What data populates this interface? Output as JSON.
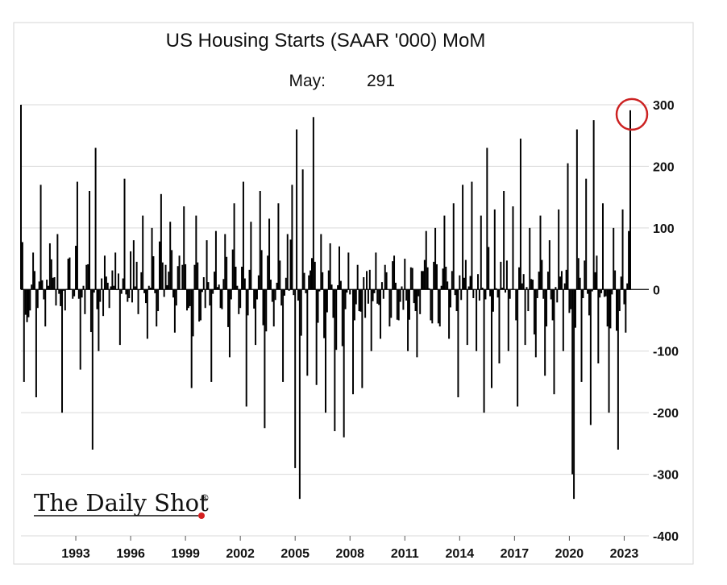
{
  "chart_data": {
    "type": "bar",
    "title": "US Housing Starts (SAAR '000) MoM",
    "subtitle_label": "May:",
    "subtitle_value": "291",
    "xlabel": "",
    "ylabel": "",
    "ylim": [
      -400,
      300
    ],
    "y_ticks": [
      300,
      200,
      100,
      0,
      -100,
      -200,
      -300,
      -400
    ],
    "x_tick_labels": [
      "1993",
      "1996",
      "1999",
      "2002",
      "2005",
      "2008",
      "2011",
      "2014",
      "2017",
      "2020",
      "2023"
    ],
    "x_range": [
      "1990-01",
      "2023-05"
    ],
    "grid": "horizontal",
    "highlight": {
      "date": "2023-05",
      "value": 291,
      "color": "#cc2222"
    },
    "series": [
      {
        "color": "#000000",
        "anchors": [
          [
            "1990-01",
            300
          ],
          [
            "1990-03",
            -150
          ],
          [
            "1990-06",
            -45
          ],
          [
            "1990-09",
            60
          ],
          [
            "1990-11",
            -175
          ],
          [
            "1991-02",
            170
          ],
          [
            "1991-05",
            -60
          ],
          [
            "1991-08",
            75
          ],
          [
            "1991-11",
            20
          ],
          [
            "1992-01",
            90
          ],
          [
            "1992-04",
            -200
          ],
          [
            "1992-08",
            50
          ],
          [
            "1992-11",
            -15
          ],
          [
            "1993-02",
            175
          ],
          [
            "1993-04",
            -130
          ],
          [
            "1993-08",
            40
          ],
          [
            "1993-10",
            160
          ],
          [
            "1993-12",
            -260
          ],
          [
            "1994-02",
            230
          ],
          [
            "1994-04",
            -100
          ],
          [
            "1994-08",
            55
          ],
          [
            "1994-11",
            -30
          ],
          [
            "1995-03",
            60
          ],
          [
            "1995-06",
            -90
          ],
          [
            "1995-09",
            180
          ],
          [
            "1995-11",
            -20
          ],
          [
            "1996-03",
            80
          ],
          [
            "1996-06",
            -40
          ],
          [
            "1996-09",
            120
          ],
          [
            "1996-12",
            -80
          ],
          [
            "1997-03",
            100
          ],
          [
            "1997-06",
            -60
          ],
          [
            "1997-09",
            155
          ],
          [
            "1997-12",
            40
          ],
          [
            "1998-03",
            110
          ],
          [
            "1998-06",
            -70
          ],
          [
            "1998-09",
            55
          ],
          [
            "1998-12",
            135
          ],
          [
            "1999-03",
            -30
          ],
          [
            "1999-05",
            -160
          ],
          [
            "1999-08",
            120
          ],
          [
            "1999-11",
            -50
          ],
          [
            "2000-03",
            80
          ],
          [
            "2000-06",
            -150
          ],
          [
            "2000-09",
            95
          ],
          [
            "2000-12",
            -30
          ],
          [
            "2001-03",
            90
          ],
          [
            "2001-06",
            -110
          ],
          [
            "2001-09",
            140
          ],
          [
            "2001-12",
            -40
          ],
          [
            "2002-03",
            175
          ],
          [
            "2002-05",
            -190
          ],
          [
            "2002-08",
            110
          ],
          [
            "2002-11",
            -90
          ],
          [
            "2003-02",
            160
          ],
          [
            "2003-05",
            -225
          ],
          [
            "2003-08",
            115
          ],
          [
            "2003-11",
            -60
          ],
          [
            "2004-02",
            140
          ],
          [
            "2004-05",
            -150
          ],
          [
            "2004-08",
            90
          ],
          [
            "2004-11",
            170
          ],
          [
            "2005-01",
            -290
          ],
          [
            "2005-02",
            260
          ],
          [
            "2005-04",
            -340
          ],
          [
            "2005-06",
            195
          ],
          [
            "2005-09",
            -140
          ],
          [
            "2006-01",
            280
          ],
          [
            "2006-03",
            -155
          ],
          [
            "2006-06",
            90
          ],
          [
            "2006-09",
            -200
          ],
          [
            "2006-12",
            75
          ],
          [
            "2007-03",
            -230
          ],
          [
            "2007-06",
            70
          ],
          [
            "2007-09",
            -240
          ],
          [
            "2007-12",
            60
          ],
          [
            "2008-03",
            -170
          ],
          [
            "2008-06",
            40
          ],
          [
            "2008-09",
            -160
          ],
          [
            "2008-12",
            30
          ],
          [
            "2009-03",
            -100
          ],
          [
            "2009-06",
            60
          ],
          [
            "2009-09",
            -80
          ],
          [
            "2009-12",
            40
          ],
          [
            "2010-03",
            -60
          ],
          [
            "2010-06",
            55
          ],
          [
            "2010-09",
            -50
          ],
          [
            "2011-01",
            50
          ],
          [
            "2011-03",
            -100
          ],
          [
            "2011-06",
            35
          ],
          [
            "2011-09",
            -110
          ],
          [
            "2011-12",
            30
          ],
          [
            "2012-03",
            95
          ],
          [
            "2012-06",
            -50
          ],
          [
            "2012-09",
            100
          ],
          [
            "2012-12",
            -60
          ],
          [
            "2013-03",
            120
          ],
          [
            "2013-06",
            -80
          ],
          [
            "2013-09",
            140
          ],
          [
            "2013-12",
            -175
          ],
          [
            "2014-03",
            170
          ],
          [
            "2014-06",
            -90
          ],
          [
            "2014-09",
            175
          ],
          [
            "2014-12",
            -100
          ],
          [
            "2015-03",
            120
          ],
          [
            "2015-05",
            -200
          ],
          [
            "2015-07",
            230
          ],
          [
            "2015-10",
            -160
          ],
          [
            "2015-12",
            130
          ],
          [
            "2016-03",
            -120
          ],
          [
            "2016-06",
            160
          ],
          [
            "2016-09",
            -100
          ],
          [
            "2016-12",
            135
          ],
          [
            "2017-03",
            -190
          ],
          [
            "2017-05",
            245
          ],
          [
            "2017-08",
            -90
          ],
          [
            "2017-11",
            100
          ],
          [
            "2018-03",
            -110
          ],
          [
            "2018-06",
            120
          ],
          [
            "2018-09",
            -140
          ],
          [
            "2018-12",
            80
          ],
          [
            "2019-03",
            -170
          ],
          [
            "2019-06",
            130
          ],
          [
            "2019-09",
            -100
          ],
          [
            "2019-12",
            205
          ],
          [
            "2020-03",
            -300
          ],
          [
            "2020-04",
            -340
          ],
          [
            "2020-06",
            260
          ],
          [
            "2020-09",
            -150
          ],
          [
            "2020-12",
            180
          ],
          [
            "2021-03",
            -220
          ],
          [
            "2021-05",
            275
          ],
          [
            "2021-08",
            -120
          ],
          [
            "2021-11",
            140
          ],
          [
            "2022-03",
            -200
          ],
          [
            "2022-06",
            100
          ],
          [
            "2022-09",
            -260
          ],
          [
            "2022-12",
            130
          ],
          [
            "2023-02",
            -70
          ],
          [
            "2023-04",
            95
          ],
          [
            "2023-05",
            291
          ]
        ]
      }
    ]
  },
  "branding": {
    "logo_text": "The Daily Shot",
    "logo_mark": "®"
  }
}
